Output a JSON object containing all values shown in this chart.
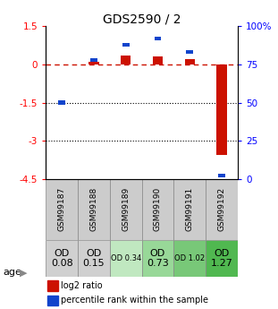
{
  "title": "GDS2590 / 2",
  "samples": [
    "GSM99187",
    "GSM99188",
    "GSM99189",
    "GSM99190",
    "GSM99191",
    "GSM99192"
  ],
  "log2_ratio": [
    0.0,
    0.1,
    0.35,
    0.3,
    0.2,
    -3.55
  ],
  "percentile_rank": [
    50,
    78,
    88,
    92,
    83,
    2
  ],
  "ylim_left": [
    -4.5,
    1.5
  ],
  "ylim_right": [
    0,
    100
  ],
  "bar_color_red": "#cc1100",
  "bar_color_blue": "#1144cc",
  "dashed_line_color": "#cc1100",
  "dotted_line_color": "#000000",
  "age_label": "age",
  "age_values": [
    "OD\n0.08",
    "OD\n0.15",
    "OD 0.34",
    "OD\n0.73",
    "OD 1.02",
    "OD\n1.27"
  ],
  "age_bg_colors": [
    "#d0d0d0",
    "#d0d0d0",
    "#c0e8c0",
    "#98d898",
    "#78c878",
    "#50b850"
  ],
  "age_fontsize_large": [
    true,
    true,
    false,
    true,
    false,
    true
  ],
  "legend_red": "log2 ratio",
  "legend_blue": "percentile rank within the sample"
}
